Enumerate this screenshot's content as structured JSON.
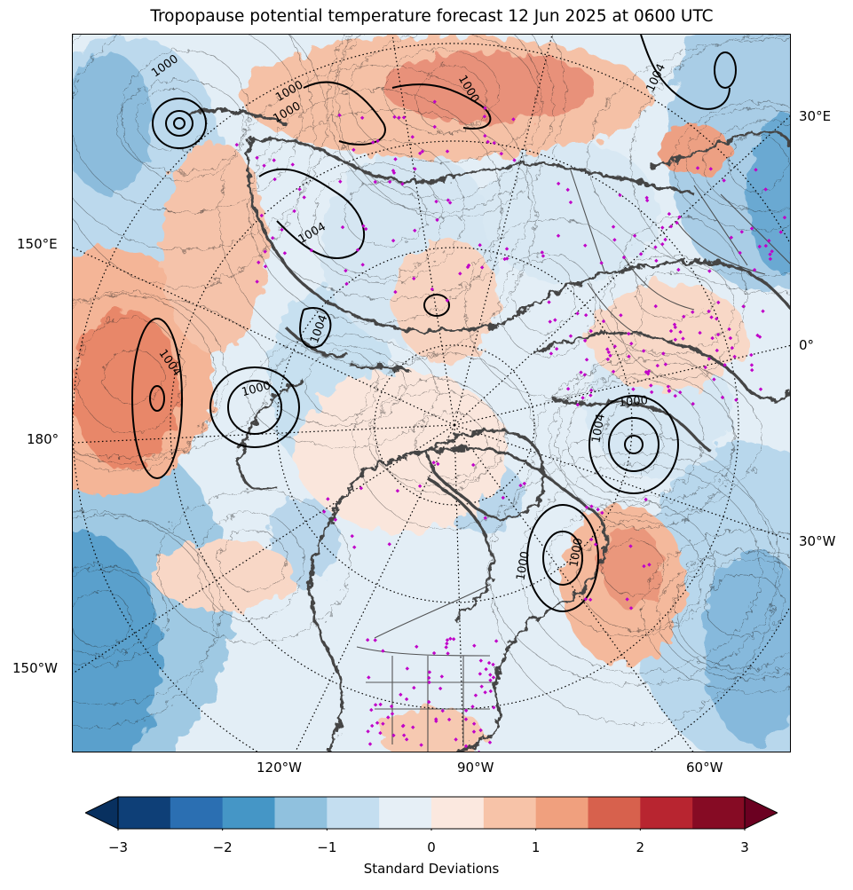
{
  "title": "Tropopause potential temperature forecast 12 Jun 2025 at 0600 UTC",
  "map": {
    "projection": "north-polar-stereographic",
    "field": "tropopause-potential-temperature-anomaly",
    "overlays": [
      "mslp-contours",
      "coastlines",
      "country-borders",
      "us-state-borders",
      "station-markers",
      "graticule"
    ],
    "contour_labels": [
      "1000",
      "1000",
      "1000",
      "1000",
      "1004",
      "1004",
      "1004",
      "1004",
      "1004",
      "1000",
      "1000",
      "1000",
      "1000"
    ],
    "lon_labels": {
      "right": [
        "30°E",
        "0°",
        "30°W"
      ],
      "left": [
        "150°E",
        "180°",
        "150°W"
      ],
      "bottom": [
        "120°W",
        "90°W",
        "60°W"
      ]
    },
    "colors": {
      "coast": "#444444",
      "station": "#c000c8",
      "mslp": "#000000"
    }
  },
  "colorbar": {
    "label": "Standard Deviations",
    "ticks": [
      "−3",
      "−2",
      "−1",
      "0",
      "1",
      "2",
      "3"
    ],
    "tick_values": [
      -3,
      -2,
      -1,
      0,
      1,
      2,
      3
    ],
    "boundaries": [
      -3,
      -2.5,
      -2,
      -1.5,
      -1,
      -0.5,
      0,
      0.5,
      1,
      1.5,
      2,
      2.5,
      3
    ],
    "colors": [
      "#0e3f77",
      "#2b6fb2",
      "#4596c6",
      "#90c1de",
      "#c4def0",
      "#e6eff6",
      "#fbe8df",
      "#f7c3a8",
      "#f0a07e",
      "#d7614d",
      "#b82530",
      "#860b24"
    ],
    "extend_low": "#08305f",
    "extend_high": "#6b0021"
  }
}
